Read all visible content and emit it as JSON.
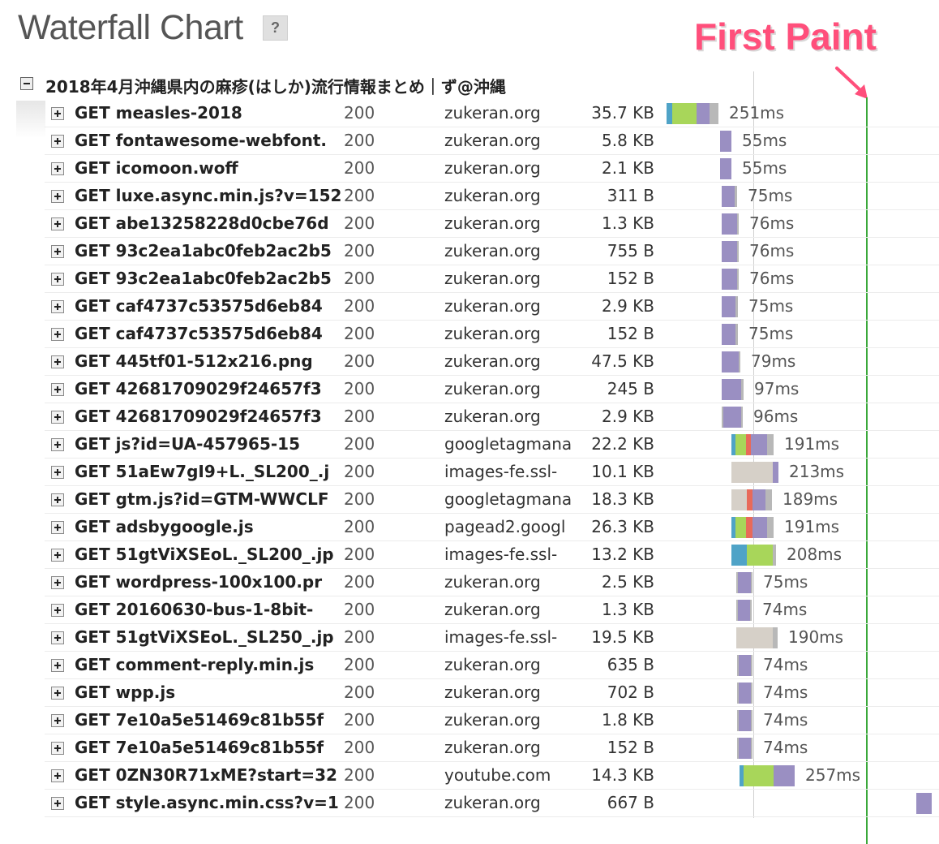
{
  "title": "Waterfall Chart",
  "help_label": "?",
  "first_paint_label": "First Paint",
  "group_title": "2018年4月沖縄県内の麻疹(はしか)流行情報まとめ｜ず@沖縄",
  "colors": {
    "blocked": "#d6d0c8",
    "dns": "#4fa3c7",
    "connect": "#e86a5a",
    "send": "#9ed44f",
    "wait": "#a8d65a",
    "receive": "#9a8fc2",
    "gray": "#b8b8b8",
    "first_paint": "#3aa83a",
    "load_line": "#cfcfcf",
    "annotation": "#ff4f7b"
  },
  "requests": [
    {
      "name": "GET measles-2018",
      "status": "200",
      "domain": "zukeran.org",
      "size": "35.7 KB",
      "duration": "251ms",
      "segments": [
        {
          "start": 0,
          "end": 7,
          "type": "dns"
        },
        {
          "start": 7,
          "end": 37,
          "type": "wait"
        },
        {
          "start": 37,
          "end": 53,
          "type": "receive"
        },
        {
          "start": 53,
          "end": 64,
          "type": "gray"
        }
      ]
    },
    {
      "name": "GET fontawesome-webfont.",
      "status": "200",
      "domain": "zukeran.org",
      "size": "5.8 KB",
      "duration": "55ms",
      "segments": [
        {
          "start": 66,
          "end": 80,
          "type": "receive"
        }
      ]
    },
    {
      "name": "GET icomoon.woff",
      "status": "200",
      "domain": "zukeran.org",
      "size": "2.1 KB",
      "duration": "55ms",
      "segments": [
        {
          "start": 66,
          "end": 80,
          "type": "receive"
        }
      ]
    },
    {
      "name": "GET luxe.async.min.js?v=152",
      "status": "200",
      "domain": "zukeran.org",
      "size": "311 B",
      "duration": "75ms",
      "segments": [
        {
          "start": 68,
          "end": 84,
          "type": "receive"
        },
        {
          "start": 84,
          "end": 87,
          "type": "gray"
        }
      ]
    },
    {
      "name": "GET abe13258228d0cbe76d",
      "status": "200",
      "domain": "zukeran.org",
      "size": "1.3 KB",
      "duration": "76ms",
      "segments": [
        {
          "start": 68,
          "end": 87,
          "type": "receive"
        },
        {
          "start": 87,
          "end": 89,
          "type": "gray"
        }
      ]
    },
    {
      "name": "GET 93c2ea1abc0feb2ac2b5",
      "status": "200",
      "domain": "zukeran.org",
      "size": "755 B",
      "duration": "76ms",
      "segments": [
        {
          "start": 68,
          "end": 87,
          "type": "receive"
        },
        {
          "start": 87,
          "end": 89,
          "type": "gray"
        }
      ]
    },
    {
      "name": "GET 93c2ea1abc0feb2ac2b5",
      "status": "200",
      "domain": "zukeran.org",
      "size": "152 B",
      "duration": "76ms",
      "segments": [
        {
          "start": 68,
          "end": 87,
          "type": "receive"
        },
        {
          "start": 87,
          "end": 89,
          "type": "gray"
        }
      ]
    },
    {
      "name": "GET caf4737c53575d6eb84",
      "status": "200",
      "domain": "zukeran.org",
      "size": "2.9 KB",
      "duration": "75ms",
      "segments": [
        {
          "start": 68,
          "end": 85,
          "type": "receive"
        },
        {
          "start": 85,
          "end": 88,
          "type": "gray"
        }
      ]
    },
    {
      "name": "GET caf4737c53575d6eb84",
      "status": "200",
      "domain": "zukeran.org",
      "size": "152 B",
      "duration": "75ms",
      "segments": [
        {
          "start": 68,
          "end": 85,
          "type": "receive"
        },
        {
          "start": 85,
          "end": 88,
          "type": "gray"
        }
      ]
    },
    {
      "name": "GET 445tf01-512x216.png",
      "status": "200",
      "domain": "zukeran.org",
      "size": "47.5 KB",
      "duration": "79ms",
      "segments": [
        {
          "start": 68,
          "end": 89,
          "type": "receive"
        },
        {
          "start": 89,
          "end": 91,
          "type": "gray"
        }
      ]
    },
    {
      "name": "GET 42681709029f24657f3",
      "status": "200",
      "domain": "zukeran.org",
      "size": "245 B",
      "duration": "97ms",
      "segments": [
        {
          "start": 68,
          "end": 92,
          "type": "receive"
        },
        {
          "start": 92,
          "end": 95,
          "type": "gray"
        }
      ]
    },
    {
      "name": "GET 42681709029f24657f3",
      "status": "200",
      "domain": "zukeran.org",
      "size": "2.9 KB",
      "duration": "96ms",
      "segments": [
        {
          "start": 68,
          "end": 70,
          "type": "gray"
        },
        {
          "start": 70,
          "end": 92,
          "type": "receive"
        },
        {
          "start": 92,
          "end": 94,
          "type": "gray"
        }
      ]
    },
    {
      "name": "GET js?id=UA-457965-15",
      "status": "200",
      "domain": "googletagmana",
      "size": "22.2 KB",
      "duration": "191ms",
      "segments": [
        {
          "start": 80,
          "end": 85,
          "type": "dns"
        },
        {
          "start": 85,
          "end": 98,
          "type": "wait"
        },
        {
          "start": 98,
          "end": 104,
          "type": "connect"
        },
        {
          "start": 104,
          "end": 124,
          "type": "receive"
        },
        {
          "start": 124,
          "end": 132,
          "type": "gray"
        }
      ]
    },
    {
      "name": "GET 51aEw7gI9+L._SL200_.j",
      "status": "200",
      "domain": "images-fe.ssl-",
      "size": "10.1 KB",
      "duration": "213ms",
      "segments": [
        {
          "start": 80,
          "end": 131,
          "type": "blocked"
        },
        {
          "start": 131,
          "end": 138,
          "type": "receive"
        }
      ]
    },
    {
      "name": "GET gtm.js?id=GTM-WWCLF",
      "status": "200",
      "domain": "googletagmana",
      "size": "18.3 KB",
      "duration": "189ms",
      "segments": [
        {
          "start": 80,
          "end": 99,
          "type": "blocked"
        },
        {
          "start": 99,
          "end": 106,
          "type": "connect"
        },
        {
          "start": 106,
          "end": 122,
          "type": "receive"
        },
        {
          "start": 122,
          "end": 130,
          "type": "gray"
        }
      ]
    },
    {
      "name": "GET adsbygoogle.js",
      "status": "200",
      "domain": "pagead2.googl",
      "size": "26.3 KB",
      "duration": "191ms",
      "segments": [
        {
          "start": 80,
          "end": 85,
          "type": "dns"
        },
        {
          "start": 85,
          "end": 98,
          "type": "wait"
        },
        {
          "start": 98,
          "end": 106,
          "type": "connect"
        },
        {
          "start": 106,
          "end": 124,
          "type": "receive"
        },
        {
          "start": 124,
          "end": 132,
          "type": "gray"
        }
      ]
    },
    {
      "name": "GET 51gtViXSEoL._SL200_.jp",
      "status": "200",
      "domain": "images-fe.ssl-",
      "size": "13.2 KB",
      "duration": "208ms",
      "segments": [
        {
          "start": 80,
          "end": 99,
          "type": "dns"
        },
        {
          "start": 99,
          "end": 131,
          "type": "wait"
        },
        {
          "start": 131,
          "end": 135,
          "type": "gray"
        }
      ]
    },
    {
      "name": "GET wordpress-100x100.pr",
      "status": "200",
      "domain": "zukeran.org",
      "size": "2.5 KB",
      "duration": "75ms",
      "segments": [
        {
          "start": 86,
          "end": 88,
          "type": "gray"
        },
        {
          "start": 88,
          "end": 104,
          "type": "receive"
        },
        {
          "start": 104,
          "end": 106,
          "type": "gray"
        }
      ]
    },
    {
      "name": "GET 20160630-bus-1-8bit-",
      "status": "200",
      "domain": "zukeran.org",
      "size": "1.3 KB",
      "duration": "74ms",
      "segments": [
        {
          "start": 86,
          "end": 88,
          "type": "gray"
        },
        {
          "start": 88,
          "end": 103,
          "type": "receive"
        },
        {
          "start": 103,
          "end": 105,
          "type": "gray"
        }
      ]
    },
    {
      "name": "GET 51gtViXSEoL._SL250_.jp",
      "status": "200",
      "domain": "images-fe.ssl-",
      "size": "19.5 KB",
      "duration": "190ms",
      "segments": [
        {
          "start": 86,
          "end": 131,
          "type": "blocked"
        },
        {
          "start": 131,
          "end": 137,
          "type": "gray"
        }
      ]
    },
    {
      "name": "GET comment-reply.min.js",
      "status": "200",
      "domain": "zukeran.org",
      "size": "635 B",
      "duration": "74ms",
      "segments": [
        {
          "start": 87,
          "end": 89,
          "type": "gray"
        },
        {
          "start": 89,
          "end": 104,
          "type": "receive"
        },
        {
          "start": 104,
          "end": 106,
          "type": "gray"
        }
      ]
    },
    {
      "name": "GET wpp.js",
      "status": "200",
      "domain": "zukeran.org",
      "size": "702 B",
      "duration": "74ms",
      "segments": [
        {
          "start": 87,
          "end": 89,
          "type": "gray"
        },
        {
          "start": 89,
          "end": 104,
          "type": "receive"
        },
        {
          "start": 104,
          "end": 106,
          "type": "gray"
        }
      ]
    },
    {
      "name": "GET 7e10a5e51469c81b55f",
      "status": "200",
      "domain": "zukeran.org",
      "size": "1.8 KB",
      "duration": "74ms",
      "segments": [
        {
          "start": 87,
          "end": 89,
          "type": "gray"
        },
        {
          "start": 89,
          "end": 104,
          "type": "receive"
        },
        {
          "start": 104,
          "end": 106,
          "type": "gray"
        }
      ]
    },
    {
      "name": "GET 7e10a5e51469c81b55f",
      "status": "200",
      "domain": "zukeran.org",
      "size": "152 B",
      "duration": "74ms",
      "segments": [
        {
          "start": 87,
          "end": 89,
          "type": "gray"
        },
        {
          "start": 89,
          "end": 104,
          "type": "receive"
        },
        {
          "start": 104,
          "end": 106,
          "type": "gray"
        }
      ]
    },
    {
      "name": "GET 0ZN30R71xME?start=32",
      "status": "200",
      "domain": "youtube.com",
      "size": "14.3 KB",
      "duration": "257ms",
      "segments": [
        {
          "start": 90,
          "end": 95,
          "type": "dns"
        },
        {
          "start": 95,
          "end": 132,
          "type": "wait"
        },
        {
          "start": 132,
          "end": 158,
          "type": "receive"
        }
      ]
    },
    {
      "name": "GET style.async.min.css?v=1",
      "status": "200",
      "domain": "zukeran.org",
      "size": "667 B",
      "duration": "",
      "segments": [
        {
          "start": 308,
          "end": 327,
          "type": "receive"
        }
      ]
    }
  ]
}
